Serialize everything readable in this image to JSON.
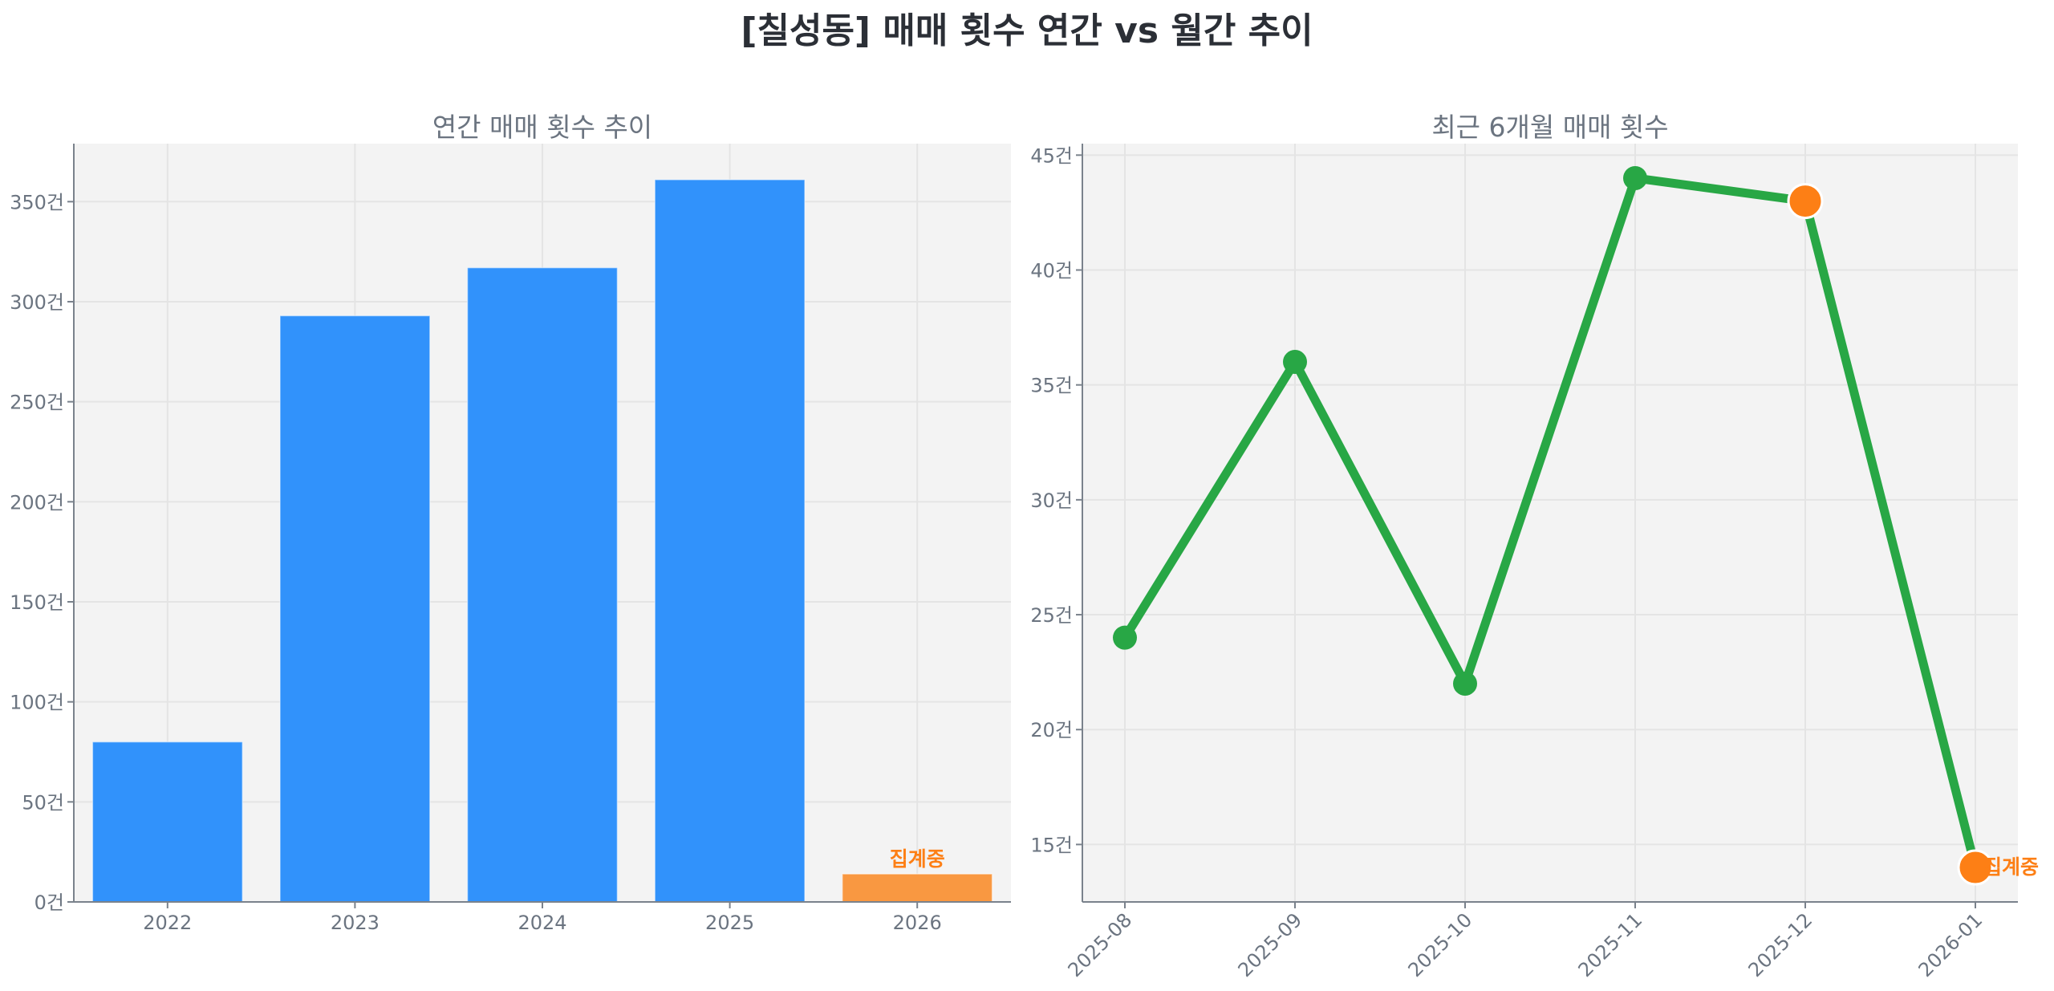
{
  "title": "[칠성동] 매매 횟수 연간 vs 월간 추이",
  "colors": {
    "bar": "#3192fb",
    "bar_partial": "#f99841",
    "line": "#28a745",
    "highlight": "#fd7f15",
    "annotation": "#fd7f15",
    "plot_bg": "#f3f3f3",
    "axis": "#7a828c",
    "text": "#6b7480"
  },
  "chart_data": [
    {
      "type": "bar",
      "title": "연간 매매 횟수 추이",
      "xlabel": "",
      "ylabel": "",
      "categories": [
        "2022",
        "2023",
        "2024",
        "2025",
        "2026"
      ],
      "values": [
        80,
        293,
        317,
        361,
        14
      ],
      "ylim": [
        0,
        379
      ],
      "yticks": [
        0,
        50,
        100,
        150,
        200,
        250,
        300,
        350
      ],
      "ytick_labels": [
        "0건",
        "50건",
        "100건",
        "150건",
        "200건",
        "250건",
        "300건",
        "350건"
      ],
      "grid": true,
      "annotations": [
        {
          "category": "2026",
          "text": "집계중"
        }
      ]
    },
    {
      "type": "line",
      "title": "최근 6개월 매매 횟수",
      "xlabel": "",
      "ylabel": "",
      "categories": [
        "2025-08",
        "2025-09",
        "2025-10",
        "2025-11",
        "2025-12",
        "2026-01"
      ],
      "values": [
        24,
        36,
        22,
        44,
        43,
        14
      ],
      "highlighted_points": [
        "2025-12",
        "2026-01"
      ],
      "ylim": [
        12.5,
        45.5
      ],
      "yticks": [
        15,
        20,
        25,
        30,
        35,
        40,
        45
      ],
      "ytick_labels": [
        "15건",
        "20건",
        "25건",
        "30건",
        "35건",
        "40건",
        "45건"
      ],
      "grid": true,
      "annotations": [
        {
          "category": "2026-01",
          "text": "집계중"
        }
      ]
    }
  ]
}
